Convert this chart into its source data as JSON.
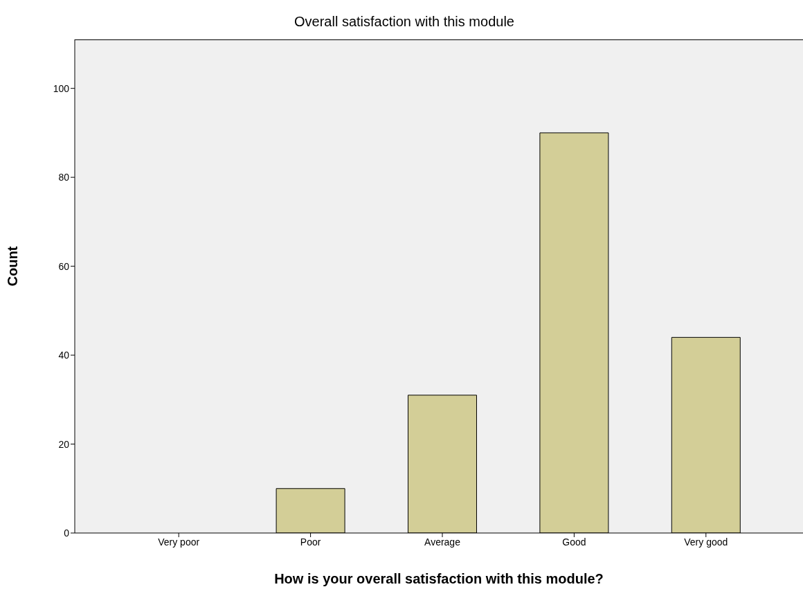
{
  "chart_data": {
    "type": "bar",
    "title": "Overall satisfaction with this module",
    "xlabel": "How is your overall satisfaction with this module?",
    "ylabel": "Count",
    "categories": [
      "Very poor",
      "Poor",
      "Average",
      "Good",
      "Very good"
    ],
    "values": [
      0,
      10,
      31,
      90,
      44
    ],
    "color": "#d3ce97",
    "ylim": [
      0,
      111
    ],
    "yticks": [
      0,
      20,
      40,
      60,
      80,
      100
    ],
    "grid": false,
    "legend": false
  }
}
